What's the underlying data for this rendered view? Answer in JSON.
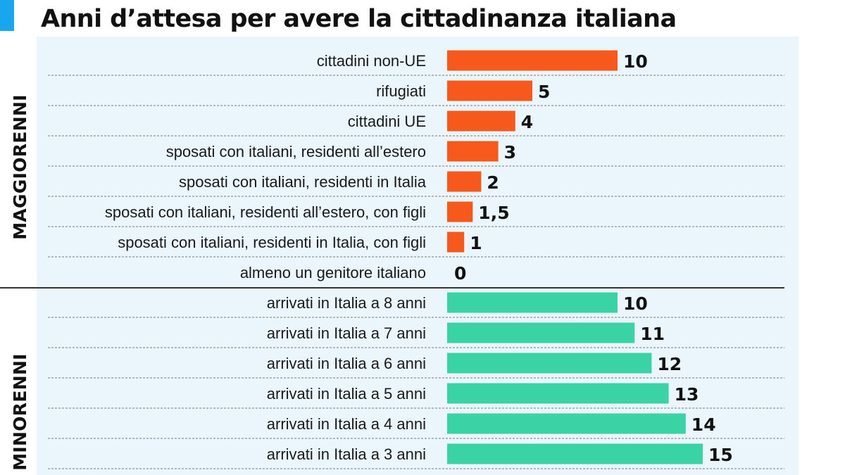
{
  "title": "Anni d’attesa per avere la cittadinanza italiana",
  "colors": {
    "accent": "#1aa6ee",
    "panel_bg": "#eaf6fb",
    "adult_bar": "#f7581b",
    "minor_bar": "#3ad3a6",
    "dotted_line": "#777777"
  },
  "chart_data": {
    "type": "bar",
    "orientation": "horizontal",
    "title": "Anni d’attesa per avere la cittadinanza italiana",
    "groups": [
      {
        "name": "MAGGIORENNI",
        "categories": [
          "cittadini non-UE",
          "rifugiati",
          "cittadini UE",
          "sposati con italiani, residenti all’estero",
          "sposati con italiani, residenti in Italia",
          "sposati con italiani, residenti all’estero, con figli",
          "sposati con italiani, residenti in Italia, con figli",
          "almeno un genitore italiano"
        ],
        "values": [
          10,
          5,
          4,
          3,
          2,
          1.5,
          1,
          0
        ],
        "value_labels": [
          "10",
          "5",
          "4",
          "3",
          "2",
          "1,5",
          "1",
          "0"
        ]
      },
      {
        "name": "MINORENNI",
        "categories": [
          "arrivati in Italia a 8 anni",
          "arrivati in Italia a 7 anni",
          "arrivati in Italia a 6 anni",
          "arrivati in Italia a 5 anni",
          "arrivati in Italia a 4 anni",
          "arrivati in Italia a 3 anni"
        ],
        "values": [
          10,
          11,
          12,
          13,
          14,
          15
        ],
        "value_labels": [
          "10",
          "11",
          "12",
          "13",
          "14",
          "15"
        ]
      }
    ],
    "xlim": [
      0,
      10
    ],
    "grid": false,
    "legend": "none"
  }
}
